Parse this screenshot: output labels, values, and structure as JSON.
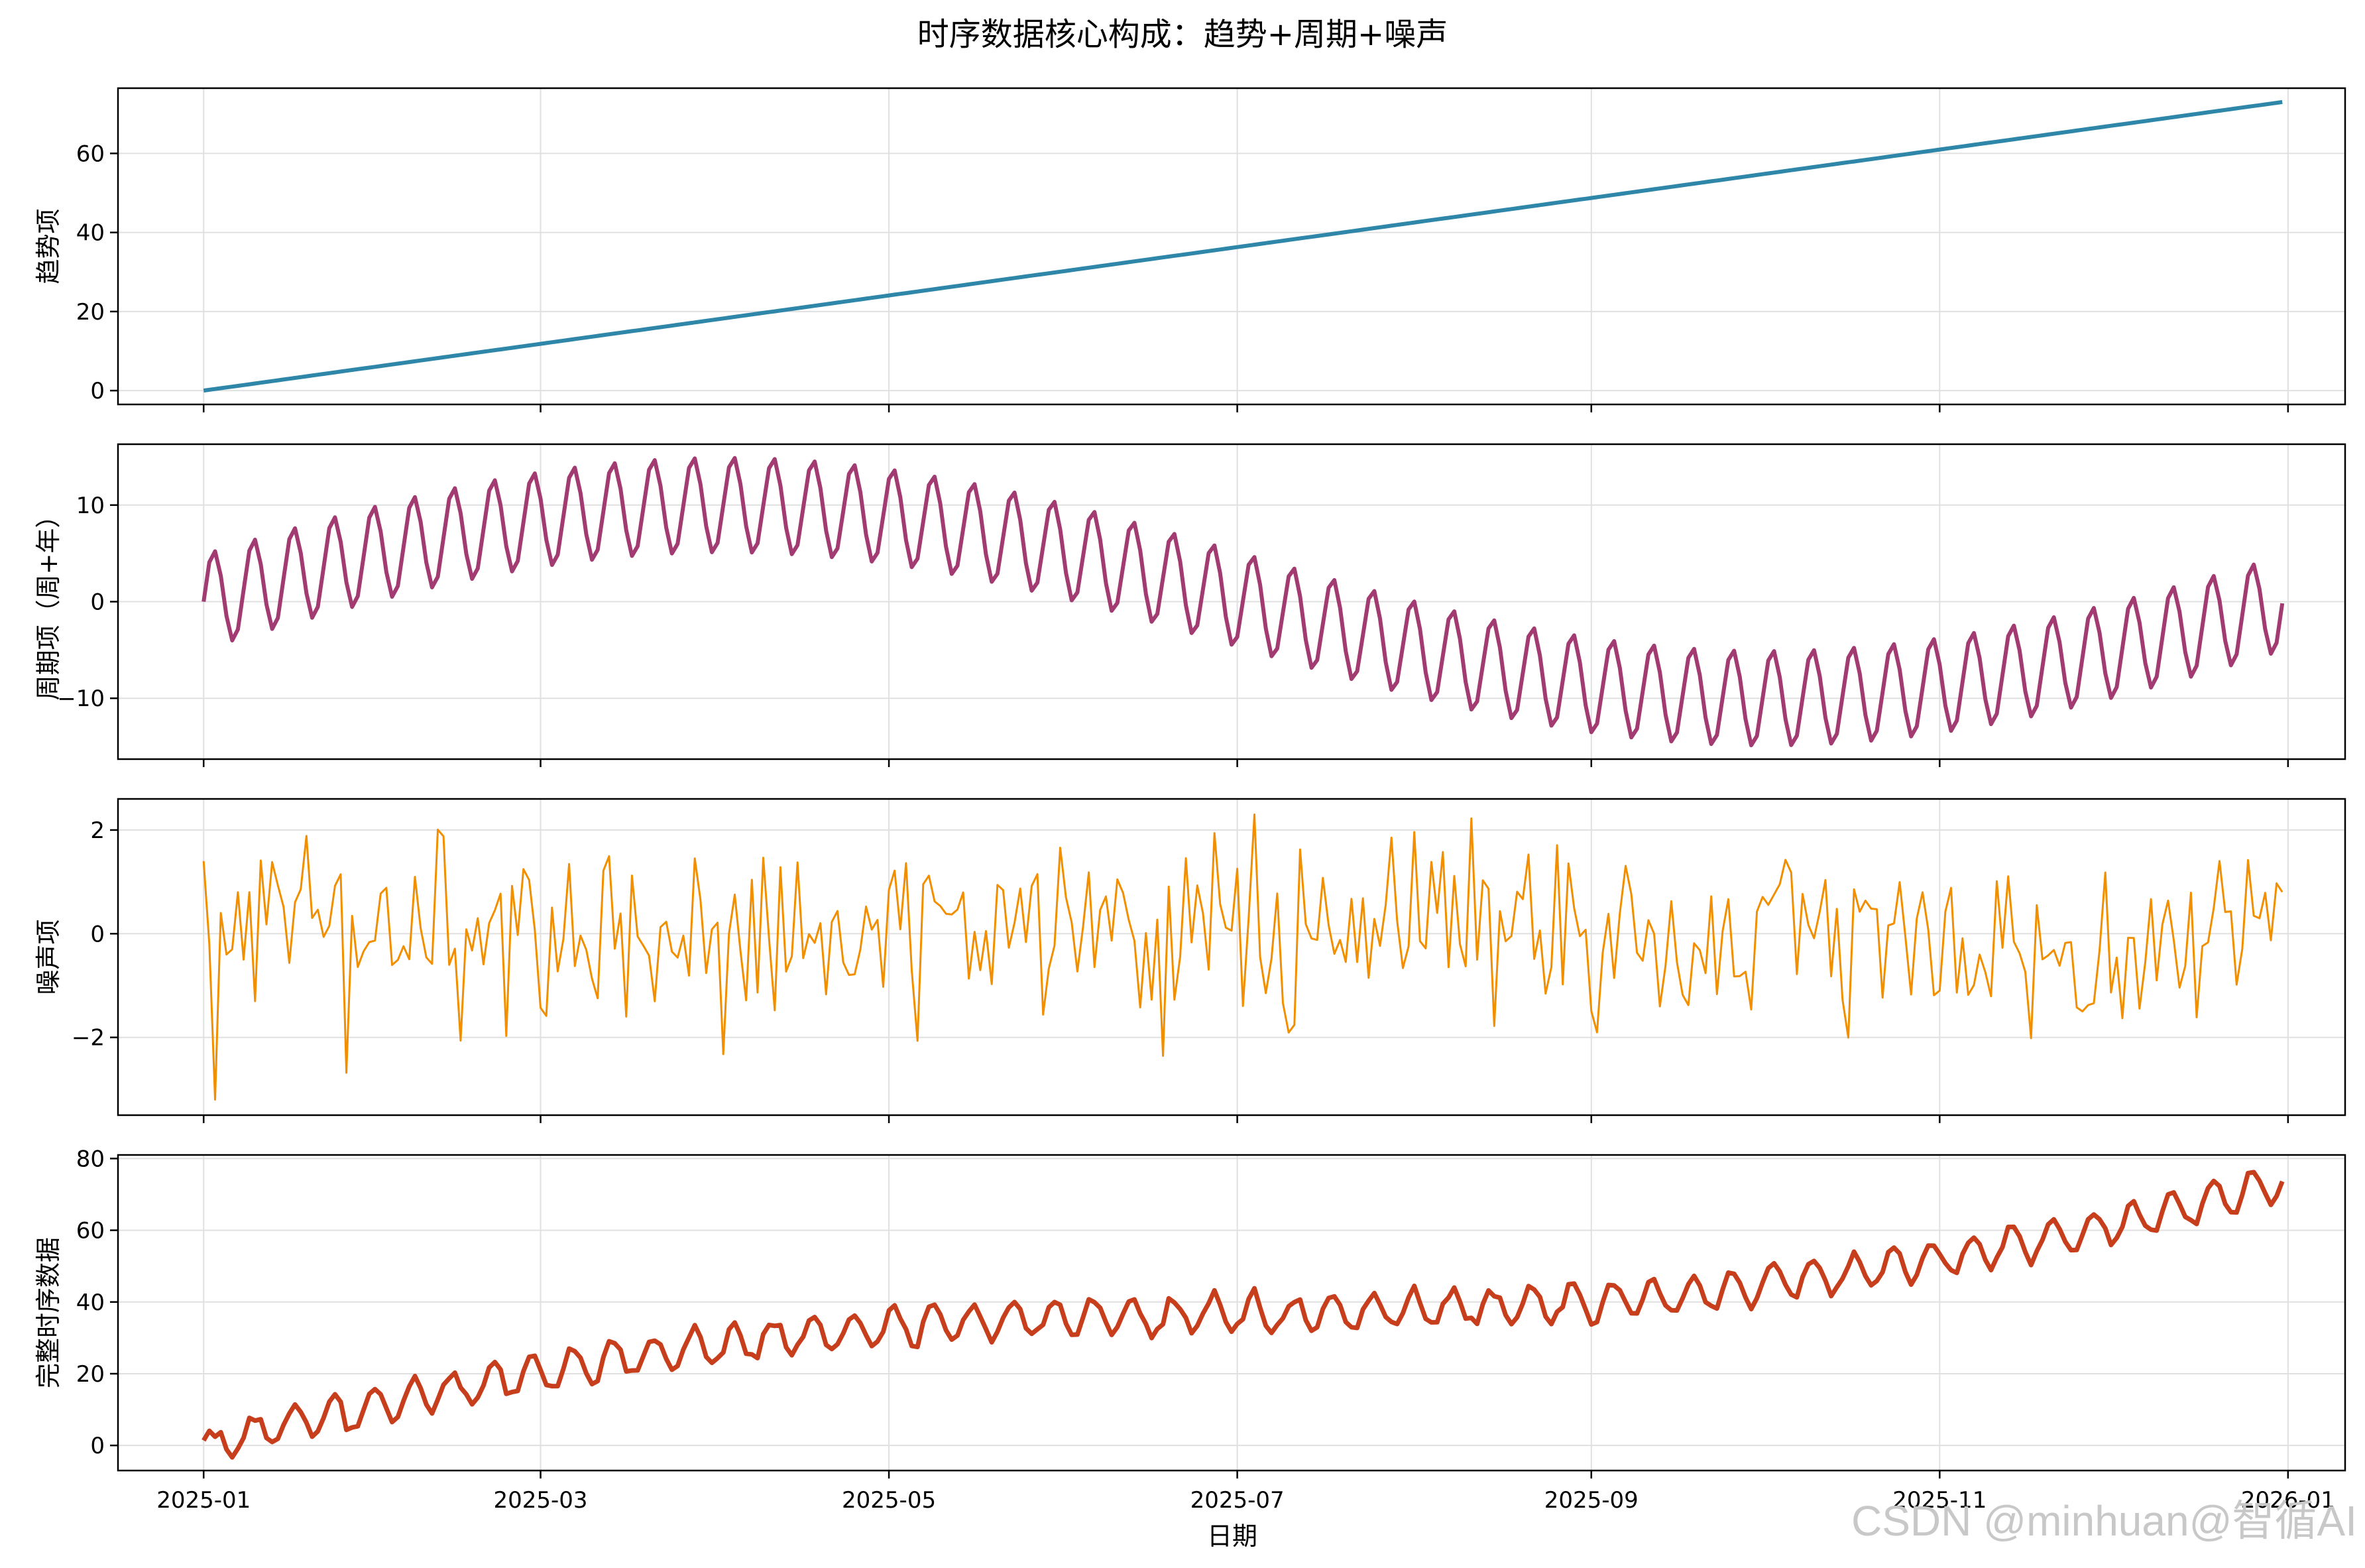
{
  "figure_title": "时序数据核心构成：趋势+周期+噪声",
  "xlabel": "日期",
  "x_ticks": [
    "2025-01",
    "2025-03",
    "2025-05",
    "2025-07",
    "2025-09",
    "2025-11",
    "2026-01"
  ],
  "watermark": "CSDN @minhuan@智循AI",
  "chart_data": [
    {
      "type": "line",
      "title": "",
      "ylabel": "趋势项",
      "x_range": [
        "2025-01-01",
        "2025-12-31"
      ],
      "ylim": [
        -3.5,
        76.5
      ],
      "y_ticks": [
        0,
        20,
        40,
        60
      ],
      "grid": true,
      "color": "#2e86a8",
      "series": [
        {
          "x": [
            "2025-01-01",
            "2025-12-31"
          ],
          "values": [
            0,
            73
          ]
        }
      ]
    },
    {
      "type": "line",
      "title": "",
      "ylabel": "周期项（周+年）",
      "x_range": [
        "2025-01-01",
        "2025-12-31"
      ],
      "ylim": [
        -16.3,
        16.3
      ],
      "y_ticks": [
        -10,
        0,
        10
      ],
      "grid": true,
      "color": "#a23b72",
      "components": {
        "weekly_amplitude": 5,
        "weekly_period_days": 7,
        "yearly_amplitude": 10,
        "yearly_period_days": 365
      },
      "series": [
        {
          "x": [
            "2025-01-01",
            "2025-01-02",
            "2025-01-03",
            "2025-01-04",
            "2025-01-05",
            "2025-01-06",
            "2025-01-07",
            "2025-01-08",
            "2025-01-09",
            "2025-01-10",
            "2025-01-11",
            "2025-01-12",
            "2025-01-13",
            "2025-01-14",
            "2025-01-15"
          ],
          "values": [
            0,
            4.1,
            5.2,
            2.5,
            -1.9,
            -4.0,
            -2.8,
            1.6,
            5.6,
            6.5,
            3.7,
            -0.9,
            -2.9,
            -1.7,
            2.7
          ]
        }
      ]
    },
    {
      "type": "line",
      "title": "",
      "ylabel": "噪声项",
      "x_range": [
        "2025-01-01",
        "2025-12-31"
      ],
      "ylim": [
        -3.5,
        2.6
      ],
      "y_ticks": [
        -2,
        0,
        2
      ],
      "grid": true,
      "color": "#f18f01",
      "series": [
        {
          "x": [
            "2025-01-01",
            "2025-01-02",
            "2025-01-03",
            "2025-01-04",
            "2025-01-05",
            "2025-01-06",
            "2025-01-07",
            "2025-01-08",
            "2025-01-09",
            "2025-01-10"
          ],
          "values": [
            1.4,
            -0.2,
            -3.2,
            0.4,
            -0.4,
            -0.3,
            0.8,
            -0.5,
            0.8,
            -1.3
          ]
        }
      ]
    },
    {
      "type": "line",
      "title": "",
      "ylabel": "完整时序数据",
      "x_range": [
        "2025-01-01",
        "2025-12-31"
      ],
      "ylim": [
        -7,
        81
      ],
      "y_ticks": [
        0,
        20,
        40,
        60,
        80
      ],
      "grid": true,
      "color": "#c73e1d",
      "series": [
        {
          "x": [
            "2025-01-01",
            "2025-03-01",
            "2025-05-01",
            "2025-07-01",
            "2025-09-01",
            "2025-11-01",
            "2025-12-31"
          ],
          "values": [
            1.4,
            19,
            36,
            37,
            40,
            52,
            75
          ]
        }
      ]
    }
  ]
}
